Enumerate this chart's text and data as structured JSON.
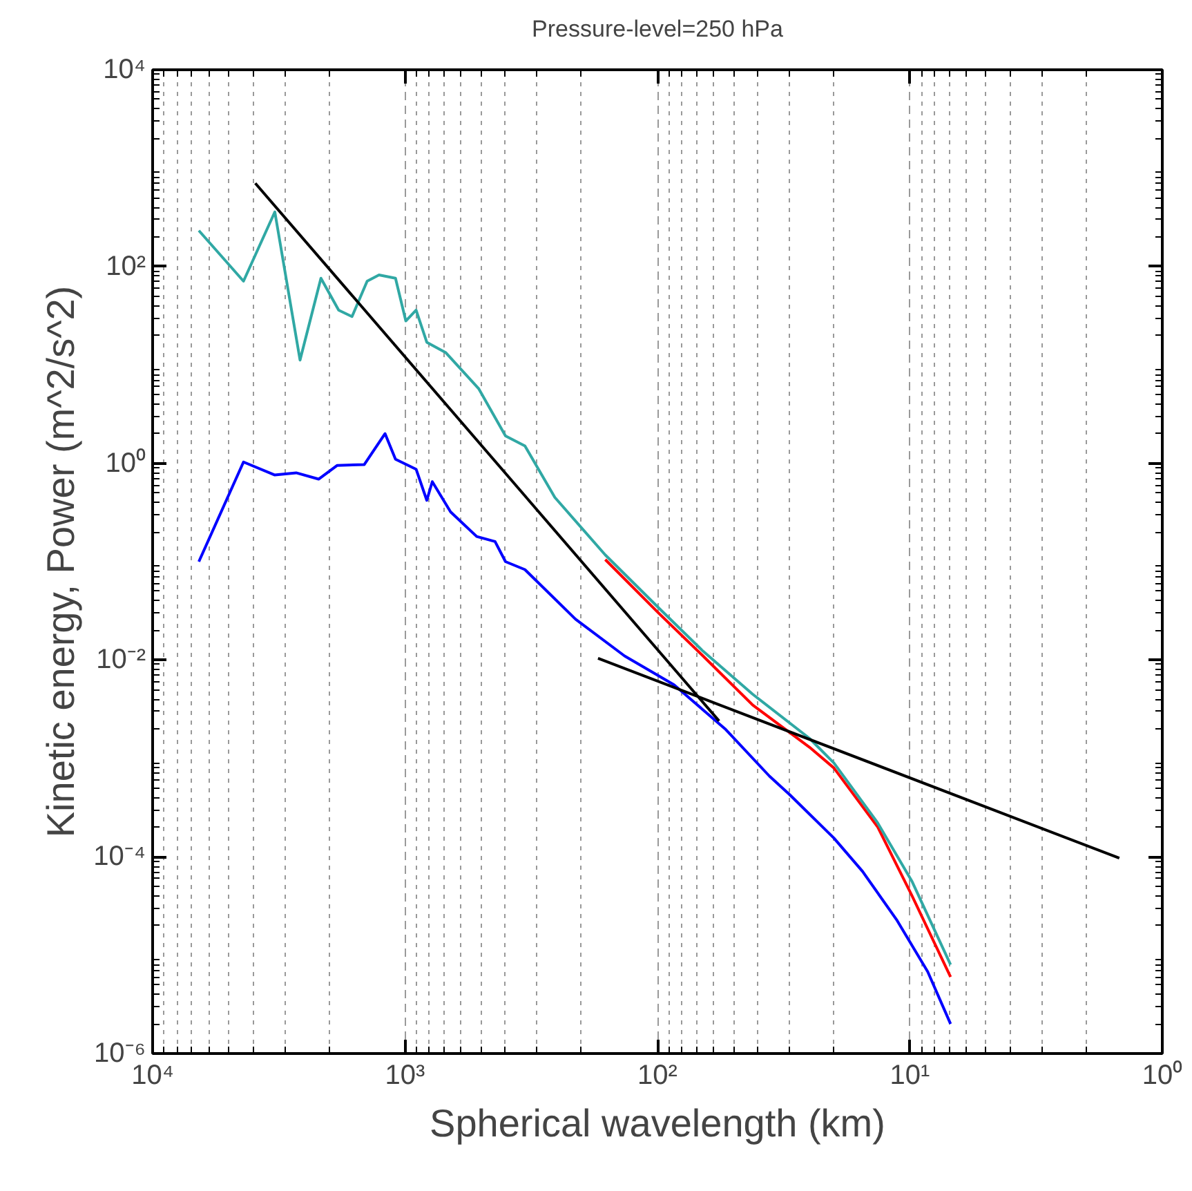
{
  "chart_data": {
    "type": "line",
    "title": "Pressure-level=250 hPa",
    "xlabel": "Spherical wavelength (km)",
    "ylabel": "Kinetic energy, Power (m^2/s^2)",
    "log": "xy",
    "grid": "x",
    "line_style": "solid",
    "marker": "none",
    "xlim": [
      10000,
      1
    ],
    "ylim": [
      1e-06,
      10000
    ],
    "xticks": [
      {
        "value": 10000,
        "label": "10⁴"
      },
      {
        "value": 1000,
        "label": "10³"
      },
      {
        "value": 100,
        "label": "10²"
      },
      {
        "value": 10,
        "label": "10¹"
      },
      {
        "value": 1,
        "label": "10⁰"
      }
    ],
    "yticks": [
      {
        "value": 1e-06,
        "label": "10⁻⁶"
      },
      {
        "value": 0.0001,
        "label": "10⁻⁴"
      },
      {
        "value": 0.01,
        "label": "10⁻²"
      },
      {
        "value": 1,
        "label": "10⁰"
      },
      {
        "value": 100,
        "label": "10²"
      },
      {
        "value": 10000,
        "label": "10⁴"
      }
    ],
    "series": [
      {
        "color": "#ff0000",
        "x": [
          161,
          99,
          66,
          42,
          25,
          20,
          13.4,
          9.8,
          6.9
        ],
        "values": [
          0.105,
          0.03,
          0.011,
          0.0035,
          0.0013,
          0.0008,
          0.0002,
          4e-05,
          6e-06
        ]
      },
      {
        "color": "#30a8a4",
        "x": [
          6560,
          4365,
          3280,
          2606,
          2154,
          1832,
          1622,
          1413,
          1268,
          1091,
          993,
          904,
          820,
          689,
          510,
          400,
          335,
          255,
          161,
          99,
          66,
          42,
          25,
          20,
          13.4,
          9.8,
          6.9
        ],
        "values": [
          232,
          71,
          359,
          11.2,
          76,
          36,
          31,
          71,
          82,
          76,
          28,
          36,
          17,
          13.3,
          5.7,
          1.9,
          1.5,
          0.45,
          0.117,
          0.034,
          0.0123,
          0.0045,
          0.0016,
          0.0009,
          0.00022,
          5.6e-05,
          8e-06
        ]
      },
      {
        "color": "#0000ff",
        "x": [
          6560,
          4365,
          3280,
          2700,
          2200,
          1860,
          1450,
          1200,
          1091,
          904,
          820,
          780,
          660,
          520,
          440,
          400,
          335,
          211,
          135,
          86,
          54,
          36,
          30,
          20,
          15.4,
          11.3,
          8.5,
          6.9
        ],
        "values": [
          0.1,
          1.03,
          0.76,
          0.8,
          0.69,
          0.95,
          0.97,
          2.0,
          1.1,
          0.87,
          0.42,
          0.65,
          0.32,
          0.18,
          0.16,
          0.1,
          0.083,
          0.026,
          0.011,
          0.0056,
          0.002,
          0.00066,
          0.00043,
          0.000155,
          7.1e-05,
          2.3e-05,
          6.8e-06,
          2e-06
        ]
      },
      {
        "color": "#000000",
        "x": [
          3920,
          57
        ],
        "values": [
          703,
          0.0024
        ]
      },
      {
        "color": "#000000",
        "x": [
          172,
          1.48
        ],
        "values": [
          0.0104,
          9.7e-05
        ]
      }
    ]
  }
}
